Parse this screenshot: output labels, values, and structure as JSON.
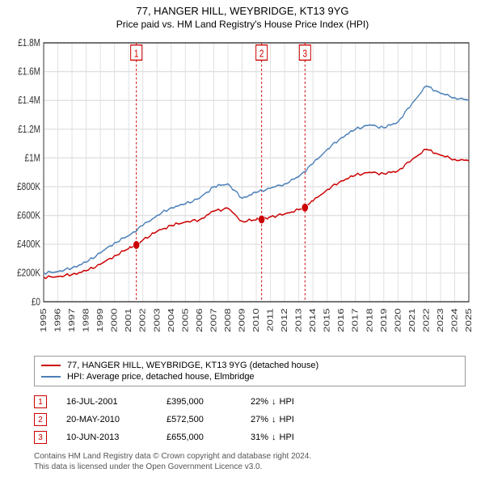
{
  "title_line1": "77, HANGER HILL, WEYBRIDGE, KT13 9YG",
  "title_line2": "Price paid vs. HM Land Registry's House Price Index (HPI)",
  "chart": {
    "type": "line",
    "background_color": "#ffffff",
    "grid_color": "#e0e0e0",
    "axis_color": "#333333",
    "xlim": [
      1995,
      2025
    ],
    "ylim": [
      0,
      1800000
    ],
    "ytick_step": 200000,
    "ytick_labels": [
      "£0",
      "£200K",
      "£400K",
      "£600K",
      "£800K",
      "£1M",
      "£1.2M",
      "£1.4M",
      "£1.6M",
      "£1.8M"
    ],
    "xtick_step": 1,
    "series": [
      {
        "name": "price_paid",
        "label": "77, HANGER HILL, WEYBRIDGE, KT13 9YG (detached house)",
        "color": "#cc0000",
        "line_width": 1.2,
        "data": [
          [
            1995,
            170000
          ],
          [
            1996,
            175000
          ],
          [
            1997,
            190000
          ],
          [
            1998,
            215000
          ],
          [
            1999,
            260000
          ],
          [
            2000,
            320000
          ],
          [
            2001,
            370000
          ],
          [
            2001.54,
            395000
          ],
          [
            2002,
            430000
          ],
          [
            2003,
            490000
          ],
          [
            2004,
            530000
          ],
          [
            2005,
            555000
          ],
          [
            2006,
            570000
          ],
          [
            2007,
            630000
          ],
          [
            2008,
            650000
          ],
          [
            2009,
            560000
          ],
          [
            2010,
            570000
          ],
          [
            2010.38,
            572500
          ],
          [
            2011,
            590000
          ],
          [
            2012,
            610000
          ],
          [
            2013,
            640000
          ],
          [
            2013.44,
            655000
          ],
          [
            2014,
            700000
          ],
          [
            2015,
            780000
          ],
          [
            2016,
            840000
          ],
          [
            2017,
            880000
          ],
          [
            2018,
            900000
          ],
          [
            2019,
            890000
          ],
          [
            2020,
            910000
          ],
          [
            2021,
            990000
          ],
          [
            2022,
            1060000
          ],
          [
            2023,
            1020000
          ],
          [
            2024,
            990000
          ],
          [
            2025,
            980000
          ]
        ]
      },
      {
        "name": "hpi",
        "label": "HPI: Average price, detached house, Elmbridge",
        "color": "#4a7fb8",
        "line_width": 1.2,
        "data": [
          [
            1995,
            200000
          ],
          [
            1996,
            210000
          ],
          [
            1997,
            235000
          ],
          [
            1998,
            275000
          ],
          [
            1999,
            340000
          ],
          [
            2000,
            410000
          ],
          [
            2001,
            460000
          ],
          [
            2002,
            530000
          ],
          [
            2003,
            600000
          ],
          [
            2004,
            655000
          ],
          [
            2005,
            680000
          ],
          [
            2006,
            720000
          ],
          [
            2007,
            800000
          ],
          [
            2008,
            820000
          ],
          [
            2009,
            720000
          ],
          [
            2010,
            760000
          ],
          [
            2011,
            790000
          ],
          [
            2012,
            820000
          ],
          [
            2013,
            870000
          ],
          [
            2014,
            960000
          ],
          [
            2015,
            1060000
          ],
          [
            2016,
            1140000
          ],
          [
            2017,
            1200000
          ],
          [
            2018,
            1230000
          ],
          [
            2019,
            1210000
          ],
          [
            2020,
            1250000
          ],
          [
            2021,
            1380000
          ],
          [
            2022,
            1500000
          ],
          [
            2023,
            1450000
          ],
          [
            2024,
            1420000
          ],
          [
            2025,
            1400000
          ]
        ]
      }
    ],
    "marker_lines": [
      {
        "x": 2001.54,
        "label": "1",
        "color": "#cc0000"
      },
      {
        "x": 2010.38,
        "label": "2",
        "color": "#cc0000"
      },
      {
        "x": 2013.44,
        "label": "3",
        "color": "#cc0000"
      }
    ],
    "marker_points": [
      {
        "x": 2001.54,
        "y": 395000,
        "color": "#cc0000"
      },
      {
        "x": 2010.38,
        "y": 572500,
        "color": "#cc0000"
      },
      {
        "x": 2013.44,
        "y": 655000,
        "color": "#cc0000"
      }
    ]
  },
  "legend": {
    "items": [
      {
        "color": "#cc0000",
        "label": "77, HANGER HILL, WEYBRIDGE, KT13 9YG (detached house)"
      },
      {
        "color": "#4a7fb8",
        "label": "HPI: Average price, detached house, Elmbridge"
      }
    ]
  },
  "transactions": [
    {
      "num": "1",
      "date": "16-JUL-2001",
      "price": "£395,000",
      "delta": "22%",
      "delta_dir": "below",
      "delta_suffix": "HPI"
    },
    {
      "num": "2",
      "date": "20-MAY-2010",
      "price": "£572,500",
      "delta": "27%",
      "delta_dir": "below",
      "delta_suffix": "HPI"
    },
    {
      "num": "3",
      "date": "10-JUN-2013",
      "price": "£655,000",
      "delta": "31%",
      "delta_dir": "below",
      "delta_suffix": "HPI"
    }
  ],
  "footnote_line1": "Contains HM Land Registry data © Crown copyright and database right 2024.",
  "footnote_line2": "This data is licensed under the Open Government Licence v3.0.",
  "colors": {
    "marker_red": "#cc0000",
    "text": "#333333",
    "footnote": "#555555"
  }
}
